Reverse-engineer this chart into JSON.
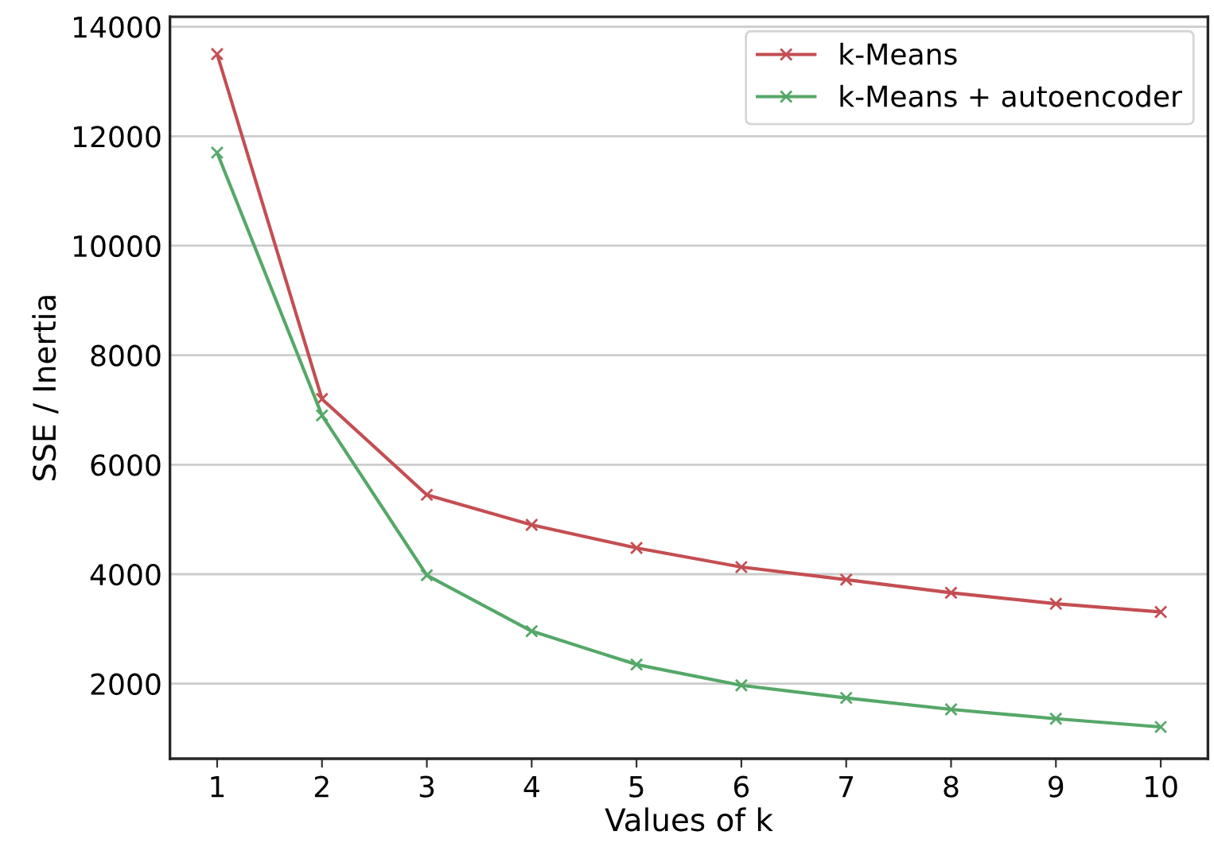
{
  "chart_data": {
    "type": "line",
    "xlabel": "Values of k",
    "ylabel": "SSE / Inertia",
    "x": [
      1,
      2,
      3,
      4,
      5,
      6,
      7,
      8,
      9,
      10
    ],
    "series": [
      {
        "name": "k-Means",
        "color": "#c44e52",
        "values": [
          13500,
          7200,
          5450,
          4900,
          4480,
          4130,
          3900,
          3660,
          3460,
          3310
        ]
      },
      {
        "name": "k-Means + autoencoder",
        "color": "#55a868",
        "values": [
          11700,
          6900,
          3980,
          2960,
          2350,
          1970,
          1740,
          1530,
          1360,
          1210
        ]
      }
    ],
    "xlim": [
      0.55,
      10.45
    ],
    "xticks": [
      1,
      2,
      3,
      4,
      5,
      6,
      7,
      8,
      9,
      10
    ],
    "ylim": [
      630,
      14180
    ],
    "yticks": [
      2000,
      4000,
      6000,
      8000,
      10000,
      12000,
      14000
    ],
    "grid": "y",
    "legend": "top right",
    "marker": "cross",
    "line_style": "solid"
  }
}
